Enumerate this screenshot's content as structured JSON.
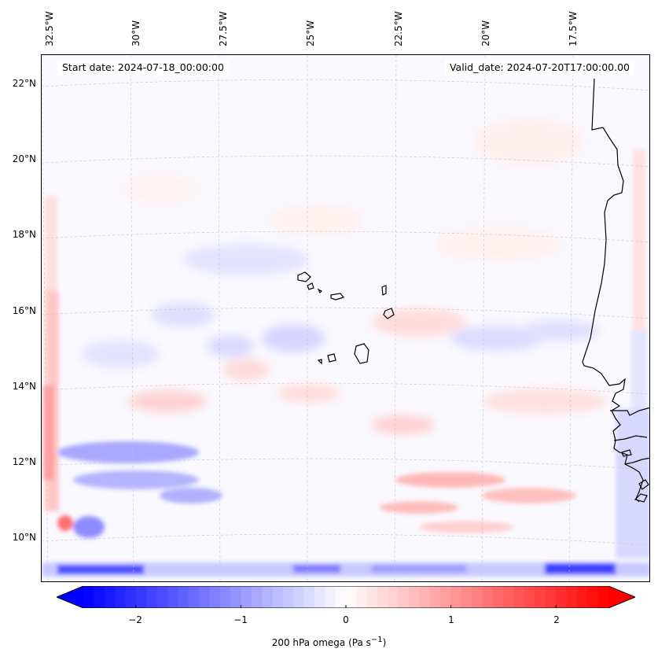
{
  "map": {
    "lon_labels": [
      "32.5°W",
      "30°W",
      "27.5°W",
      "25°W",
      "22.5°W",
      "20°W",
      "17.5°W"
    ],
    "lat_labels": [
      "22°N",
      "20°N",
      "18°N",
      "16°N",
      "14°N",
      "12°N",
      "10°N"
    ],
    "start_date": "Start date: 2024-07-18_00:00:00",
    "valid_date": "Valid_date: 2024-07-20T17:00:00.00",
    "field": "200 hPa omega",
    "units_html": "(Pa s<sup>−1</sup>)",
    "colormap": "bwr",
    "colors": {
      "negative": "#0000ff",
      "zero": "#ffffff",
      "positive": "#ff0000",
      "coast": "#000000",
      "grid": "#b0b0b0"
    }
  },
  "colorbar": {
    "range": [
      -2.5,
      2.5
    ],
    "extend": "both",
    "ticks": [
      "−2",
      "−1",
      "0",
      "1",
      "2"
    ],
    "label": "200 hPa omega (Pa s⁻¹)"
  }
}
